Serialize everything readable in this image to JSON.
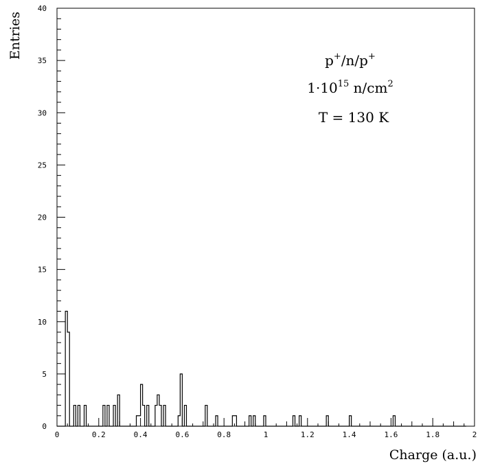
{
  "chart_data": {
    "type": "histogram",
    "title": "",
    "xlabel": "Charge (a.u.)",
    "ylabel": "Entries",
    "xlim": [
      0,
      2
    ],
    "ylim": [
      0,
      40
    ],
    "grid": false,
    "legend": "none",
    "x_ticks": [
      "0",
      "0.2",
      "0.4",
      "0.6",
      "0.8",
      "1",
      "1.2",
      "1.4",
      "1.6",
      "1.8",
      "2"
    ],
    "y_ticks": [
      "0",
      "5",
      "10",
      "15",
      "20",
      "25",
      "30",
      "35",
      "40"
    ],
    "annotations": {
      "line1": {
        "p": "p",
        "sup1": "+",
        "mid": "/n/p",
        "sup2": "+"
      },
      "line2": {
        "base": "1·10",
        "exp": "15",
        "mid": " n/cm",
        "exp2": "2"
      },
      "line3": "T = 130 K"
    },
    "series": [
      {
        "bin_width": 0.01,
        "bin_start": 0,
        "values": [
          0,
          0,
          0,
          0,
          11,
          9,
          0,
          0,
          2,
          0,
          2,
          0,
          0,
          2,
          0,
          0,
          0,
          0,
          0,
          0,
          0,
          0,
          2,
          0,
          2,
          0,
          0,
          2,
          0,
          3,
          0,
          0,
          0,
          0,
          0,
          0,
          0,
          0,
          1,
          1,
          4,
          2,
          0,
          2,
          0,
          0,
          0,
          2,
          3,
          2,
          0,
          2,
          0,
          0,
          0,
          0,
          0,
          0,
          1,
          5,
          0,
          2,
          0,
          0,
          0,
          0,
          0,
          0,
          0,
          0,
          0,
          2,
          0,
          0,
          0,
          0,
          1,
          0,
          0,
          0,
          0,
          0,
          0,
          0,
          1,
          1,
          0,
          0,
          0,
          0,
          0,
          0,
          1,
          0,
          1,
          0,
          0,
          0,
          0,
          1,
          0,
          0,
          0,
          0,
          0,
          0,
          0,
          0,
          0,
          0,
          0,
          0,
          0,
          1,
          0,
          0,
          1,
          0,
          0,
          0,
          0,
          0,
          0,
          0,
          0,
          0,
          0,
          0,
          0,
          1,
          0,
          0,
          0,
          0,
          0,
          0,
          0,
          0,
          0,
          0,
          1,
          0,
          0,
          0,
          0,
          0,
          0,
          0,
          0,
          0,
          0,
          0,
          0,
          0,
          0,
          0,
          0,
          0,
          0,
          0,
          0,
          1,
          0,
          0,
          0,
          0,
          0,
          0,
          0,
          0,
          0,
          0,
          0,
          0,
          0,
          0,
          0,
          0,
          0,
          0,
          0,
          0,
          0,
          0,
          0,
          0,
          0,
          0,
          0,
          0,
          0,
          0,
          0,
          0,
          0,
          0
        ]
      }
    ]
  }
}
